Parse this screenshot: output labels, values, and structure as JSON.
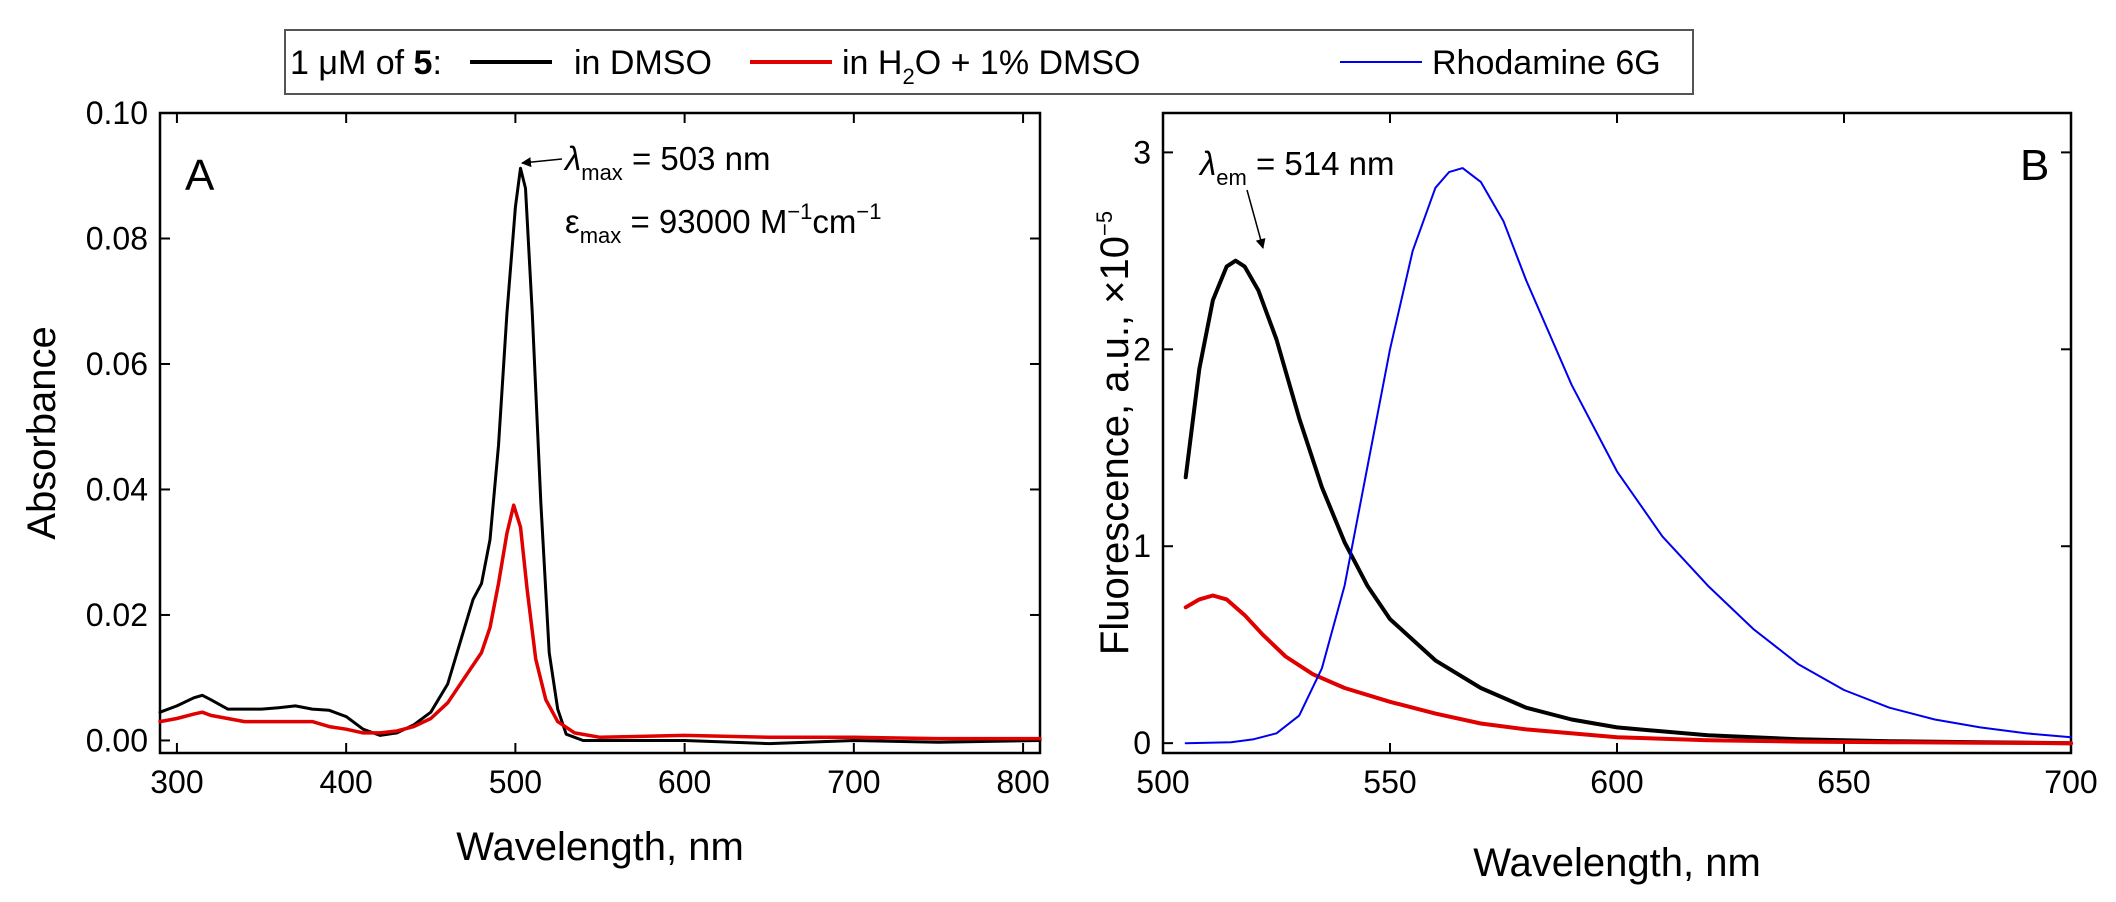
{
  "legend": {
    "prefix": "1 μM of ",
    "compound": "5",
    "colon": ":",
    "entries": [
      {
        "label": "in DMSO",
        "color": "#000000"
      },
      {
        "label_pre": "in H",
        "label_sub": "2",
        "label_post": "O + 1% DMSO",
        "color": "#e00000"
      },
      {
        "label": "Rhodamine 6G",
        "color": "#0000ee"
      }
    ]
  },
  "chart_data": [
    {
      "type": "line",
      "panel": "A",
      "xlabel": "Wavelength, nm",
      "ylabel": "Absorbance",
      "xlim": [
        290,
        810
      ],
      "ylim": [
        -0.002,
        0.1
      ],
      "xticks": [
        "300",
        "400",
        "500",
        "600",
        "700",
        "800"
      ],
      "xtick_values": [
        300,
        400,
        500,
        600,
        700,
        800
      ],
      "yticks": [
        "0.00",
        "0.02",
        "0.04",
        "0.06",
        "0.08",
        "0.10"
      ],
      "ytick_values": [
        0,
        0.02,
        0.04,
        0.06,
        0.08,
        0.1
      ],
      "annotations": {
        "lambda_symbol": "λ",
        "lambda_sub": "max",
        "lambda_text": " = 503 nm",
        "eps_symbol": "ε",
        "eps_sub": "max",
        "eps_text": " = 93000 M",
        "eps_sup1": "−1",
        "eps_mid": "cm",
        "eps_sup2": "−1",
        "arrow_target": {
          "x": 504,
          "y": 0.0912
        }
      },
      "series": [
        {
          "name": "in DMSO",
          "color": "#000000",
          "width": 3,
          "x": [
            290,
            300,
            310,
            315,
            320,
            330,
            340,
            350,
            360,
            370,
            380,
            390,
            400,
            410,
            420,
            430,
            440,
            450,
            460,
            470,
            475,
            480,
            485,
            490,
            495,
            500,
            503,
            506,
            510,
            515,
            520,
            525,
            530,
            540,
            560,
            580,
            600,
            650,
            700,
            750,
            810
          ],
          "y": [
            0.0045,
            0.0055,
            0.0068,
            0.0072,
            0.0065,
            0.005,
            0.005,
            0.005,
            0.0052,
            0.0055,
            0.005,
            0.0048,
            0.0038,
            0.0018,
            0.0008,
            0.0012,
            0.0025,
            0.0045,
            0.009,
            0.018,
            0.0225,
            0.025,
            0.032,
            0.047,
            0.068,
            0.085,
            0.0912,
            0.088,
            0.068,
            0.038,
            0.014,
            0.005,
            0.001,
            0.0,
            0.0,
            0.0,
            0.0,
            -0.0005,
            0.0,
            -0.0003,
            0.0
          ]
        },
        {
          "name": "in H2O + 1% DMSO",
          "color": "#e00000",
          "width": 3.5,
          "x": [
            290,
            300,
            310,
            315,
            320,
            330,
            340,
            350,
            360,
            370,
            380,
            390,
            400,
            410,
            420,
            430,
            440,
            450,
            460,
            470,
            480,
            485,
            490,
            495,
            499,
            503,
            507,
            512,
            518,
            525,
            535,
            550,
            600,
            650,
            700,
            750,
            810
          ],
          "y": [
            0.003,
            0.0035,
            0.0042,
            0.0045,
            0.004,
            0.0035,
            0.003,
            0.003,
            0.003,
            0.003,
            0.003,
            0.0022,
            0.0018,
            0.0012,
            0.0012,
            0.0015,
            0.0022,
            0.0035,
            0.006,
            0.01,
            0.014,
            0.018,
            0.025,
            0.033,
            0.0375,
            0.034,
            0.024,
            0.013,
            0.0065,
            0.003,
            0.0012,
            0.0005,
            0.0008,
            0.0005,
            0.0005,
            0.0003,
            0.0003
          ]
        }
      ]
    },
    {
      "type": "line",
      "panel": "B",
      "xlabel": "Wavelength, nm",
      "ylabel_pre": "Fluorescence, a.u., ×10",
      "ylabel_sup": "−5",
      "xlim": [
        500,
        700
      ],
      "ylim": [
        -0.05,
        3.2
      ],
      "xticks": [
        "500",
        "550",
        "600",
        "650",
        "700"
      ],
      "xtick_values": [
        500,
        550,
        600,
        650,
        700
      ],
      "yticks": [
        "0",
        "1",
        "2",
        "3"
      ],
      "ytick_values": [
        0,
        1,
        2,
        3
      ],
      "annotations": {
        "lambda_symbol": "λ",
        "lambda_sub": "em",
        "lambda_text": " = 514 nm",
        "arrow_target": {
          "x": 516,
          "y": 2.42
        }
      },
      "series": [
        {
          "name": "in DMSO",
          "color": "#000000",
          "width": 4,
          "x": [
            505,
            508,
            511,
            514,
            516,
            518,
            521,
            525,
            530,
            535,
            540,
            545,
            550,
            560,
            570,
            580,
            590,
            600,
            620,
            640,
            660,
            680,
            700
          ],
          "y": [
            1.35,
            1.9,
            2.25,
            2.42,
            2.45,
            2.42,
            2.3,
            2.05,
            1.65,
            1.3,
            1.02,
            0.8,
            0.63,
            0.42,
            0.28,
            0.18,
            0.12,
            0.08,
            0.04,
            0.02,
            0.01,
            0.005,
            0.0
          ]
        },
        {
          "name": "in H2O + 1% DMSO",
          "color": "#e00000",
          "width": 4,
          "x": [
            505,
            508,
            511,
            514,
            518,
            522,
            527,
            533,
            540,
            550,
            560,
            570,
            580,
            600,
            620,
            640,
            660,
            680,
            700
          ],
          "y": [
            0.69,
            0.73,
            0.75,
            0.73,
            0.65,
            0.55,
            0.44,
            0.35,
            0.28,
            0.21,
            0.15,
            0.1,
            0.07,
            0.03,
            0.015,
            0.008,
            0.005,
            0.002,
            0.0
          ]
        },
        {
          "name": "Rhodamine 6G",
          "color": "#0000ee",
          "width": 2,
          "x": [
            505,
            515,
            520,
            525,
            530,
            535,
            540,
            545,
            550,
            555,
            560,
            563,
            566,
            570,
            575,
            580,
            590,
            600,
            610,
            620,
            630,
            640,
            650,
            660,
            670,
            680,
            690,
            700
          ],
          "y": [
            0.0,
            0.005,
            0.02,
            0.05,
            0.14,
            0.38,
            0.8,
            1.4,
            2.0,
            2.5,
            2.82,
            2.9,
            2.92,
            2.85,
            2.65,
            2.35,
            1.82,
            1.38,
            1.05,
            0.8,
            0.58,
            0.4,
            0.27,
            0.18,
            0.12,
            0.08,
            0.05,
            0.03
          ]
        }
      ]
    }
  ]
}
